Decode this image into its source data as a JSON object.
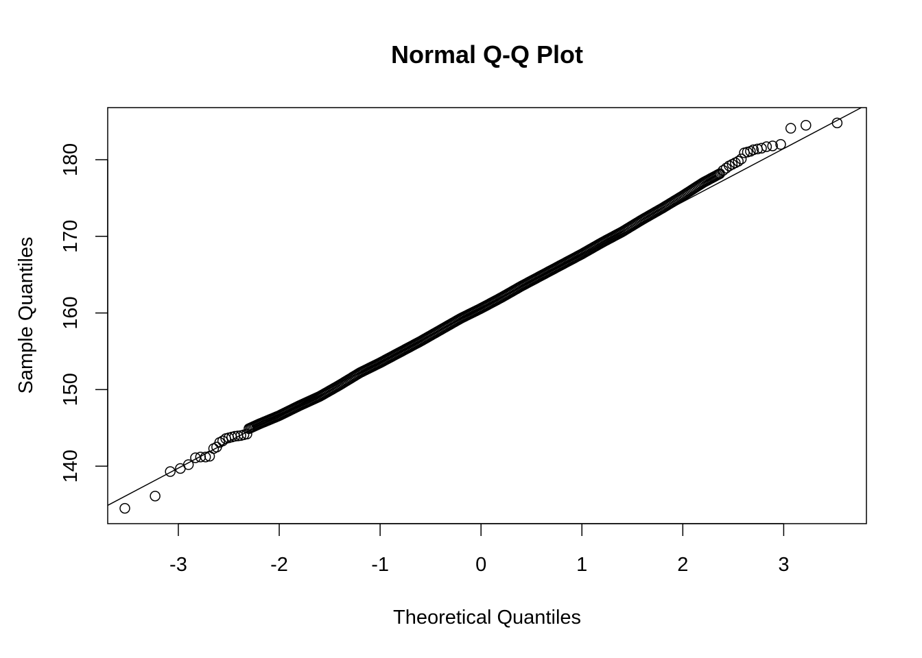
{
  "chart_data": {
    "type": "scatter",
    "title": "Normal Q-Q Plot",
    "xlabel": "Theoretical Quantiles",
    "ylabel": "Sample Quantiles",
    "xlim": [
      -3.7,
      3.82
    ],
    "ylim": [
      132.5,
      186.8
    ],
    "xticks": [
      -3,
      -2,
      -1,
      0,
      1,
      2,
      3
    ],
    "yticks": [
      140,
      150,
      160,
      170,
      180
    ],
    "grid": false,
    "legend": "none",
    "colors": {
      "points": "#000000",
      "line": "#000000",
      "frame": "#000000"
    },
    "reference_line": {
      "slope": 6.95,
      "intercept": 160.6
    },
    "tail_points": [
      [
        -3.53,
        134.5
      ],
      [
        -3.23,
        136.1
      ],
      [
        -3.08,
        139.3
      ],
      [
        -2.98,
        139.7
      ],
      [
        -2.9,
        140.2
      ],
      [
        -2.83,
        141.1
      ],
      [
        -2.78,
        141.2
      ],
      [
        -2.73,
        141.2
      ],
      [
        -2.69,
        141.3
      ],
      [
        -2.65,
        142.3
      ],
      [
        -2.62,
        142.5
      ],
      [
        -2.59,
        143.1
      ],
      [
        -2.56,
        143.3
      ],
      [
        -2.53,
        143.6
      ],
      [
        -2.5,
        143.7
      ],
      [
        -2.47,
        143.8
      ],
      [
        -2.44,
        143.9
      ],
      [
        -2.41,
        143.95
      ],
      [
        -2.38,
        144.0
      ],
      [
        -2.35,
        144.1
      ],
      [
        -2.32,
        144.2
      ],
      [
        2.4,
        178.6
      ],
      [
        2.43,
        178.9
      ],
      [
        2.46,
        179.2
      ],
      [
        2.49,
        179.4
      ],
      [
        2.52,
        179.6
      ],
      [
        2.55,
        179.8
      ],
      [
        2.58,
        180.1
      ],
      [
        2.61,
        180.9
      ],
      [
        2.64,
        181.0
      ],
      [
        2.67,
        181.1
      ],
      [
        2.7,
        181.3
      ],
      [
        2.74,
        181.4
      ],
      [
        2.78,
        181.5
      ],
      [
        2.83,
        181.7
      ],
      [
        2.89,
        181.8
      ],
      [
        2.97,
        182.0
      ],
      [
        3.07,
        184.1
      ],
      [
        3.22,
        184.5
      ],
      [
        3.53,
        184.8
      ]
    ],
    "center_points": {
      "x_from": -2.3,
      "x_to": 2.37,
      "step": 0.013,
      "segments": [
        [
          -2.3,
          144.9
        ],
        [
          -2.2,
          145.5
        ],
        [
          -2.0,
          146.6
        ],
        [
          -1.8,
          147.9
        ],
        [
          -1.6,
          149.1
        ],
        [
          -1.4,
          150.6
        ],
        [
          -1.2,
          152.2
        ],
        [
          -1.0,
          153.5
        ],
        [
          -0.8,
          154.9
        ],
        [
          -0.6,
          156.3
        ],
        [
          -0.4,
          157.8
        ],
        [
          -0.2,
          159.3
        ],
        [
          0.0,
          160.6
        ],
        [
          0.2,
          162.0
        ],
        [
          0.4,
          163.5
        ],
        [
          0.6,
          164.9
        ],
        [
          0.8,
          166.3
        ],
        [
          1.0,
          167.7
        ],
        [
          1.2,
          169.2
        ],
        [
          1.4,
          170.6
        ],
        [
          1.6,
          172.2
        ],
        [
          1.8,
          173.7
        ],
        [
          2.0,
          175.3
        ],
        [
          2.2,
          177.0
        ],
        [
          2.37,
          178.2
        ]
      ]
    }
  }
}
